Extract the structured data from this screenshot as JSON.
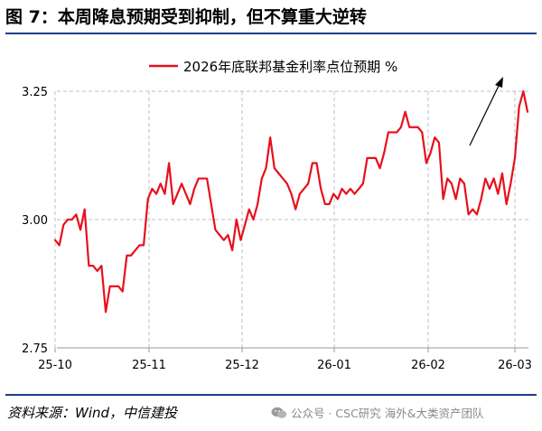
{
  "header": {
    "title": "图 7：本周降息预期受到抑制，但不算重大逆转"
  },
  "footer": {
    "source": "资料来源：Wind，中信建投",
    "watermark": "公众号 · CSC研究 海外&大类资产团队"
  },
  "icons": {
    "watermark": "wechat-icon"
  },
  "colors": {
    "series": "#e8101c",
    "grid": "#bfbfbf",
    "accent": "#1f3d8c"
  },
  "chart_data": {
    "type": "line",
    "title": "",
    "xlabel": "",
    "ylabel": "",
    "legend": {
      "position": "top-center",
      "entries": [
        "2026年底联邦基金利率点位预期 %"
      ]
    },
    "ylim": [
      2.75,
      3.25
    ],
    "yticks": [
      "3.25",
      "3.00",
      "2.75"
    ],
    "xticks": [
      "25-10",
      "25-11",
      "25-12",
      "26-01",
      "26-02",
      "26-03"
    ],
    "grid": true,
    "annotations": [
      {
        "type": "arrow",
        "direction": "up-right"
      }
    ],
    "series": [
      {
        "name": "2026年底联邦基金利率点位预期 %",
        "values": [
          2.96,
          2.95,
          2.99,
          3.0,
          3.0,
          3.01,
          2.98,
          3.02,
          2.91,
          2.91,
          2.9,
          2.91,
          2.82,
          2.87,
          2.87,
          2.87,
          2.86,
          2.93,
          2.93,
          2.94,
          2.95,
          2.95,
          3.04,
          3.06,
          3.05,
          3.07,
          3.05,
          3.11,
          3.03,
          3.05,
          3.07,
          3.05,
          3.03,
          3.06,
          3.08,
          3.08,
          3.08,
          3.03,
          2.98,
          2.97,
          2.96,
          2.97,
          2.94,
          3.0,
          2.96,
          2.99,
          3.02,
          3.0,
          3.03,
          3.08,
          3.1,
          3.16,
          3.1,
          3.09,
          3.08,
          3.07,
          3.05,
          3.02,
          3.05,
          3.06,
          3.07,
          3.11,
          3.11,
          3.06,
          3.03,
          3.03,
          3.05,
          3.04,
          3.06,
          3.05,
          3.06,
          3.05,
          3.06,
          3.07,
          3.12,
          3.12,
          3.12,
          3.1,
          3.13,
          3.17,
          3.17,
          3.17,
          3.18,
          3.21,
          3.18,
          3.18,
          3.18,
          3.17,
          3.11,
          3.13,
          3.16,
          3.15,
          3.04,
          3.08,
          3.07,
          3.04,
          3.08,
          3.07,
          3.01,
          3.02,
          3.01,
          3.04,
          3.08,
          3.06,
          3.08,
          3.05,
          3.09,
          3.03,
          3.07,
          3.12,
          3.22,
          3.25,
          3.21
        ]
      }
    ]
  }
}
